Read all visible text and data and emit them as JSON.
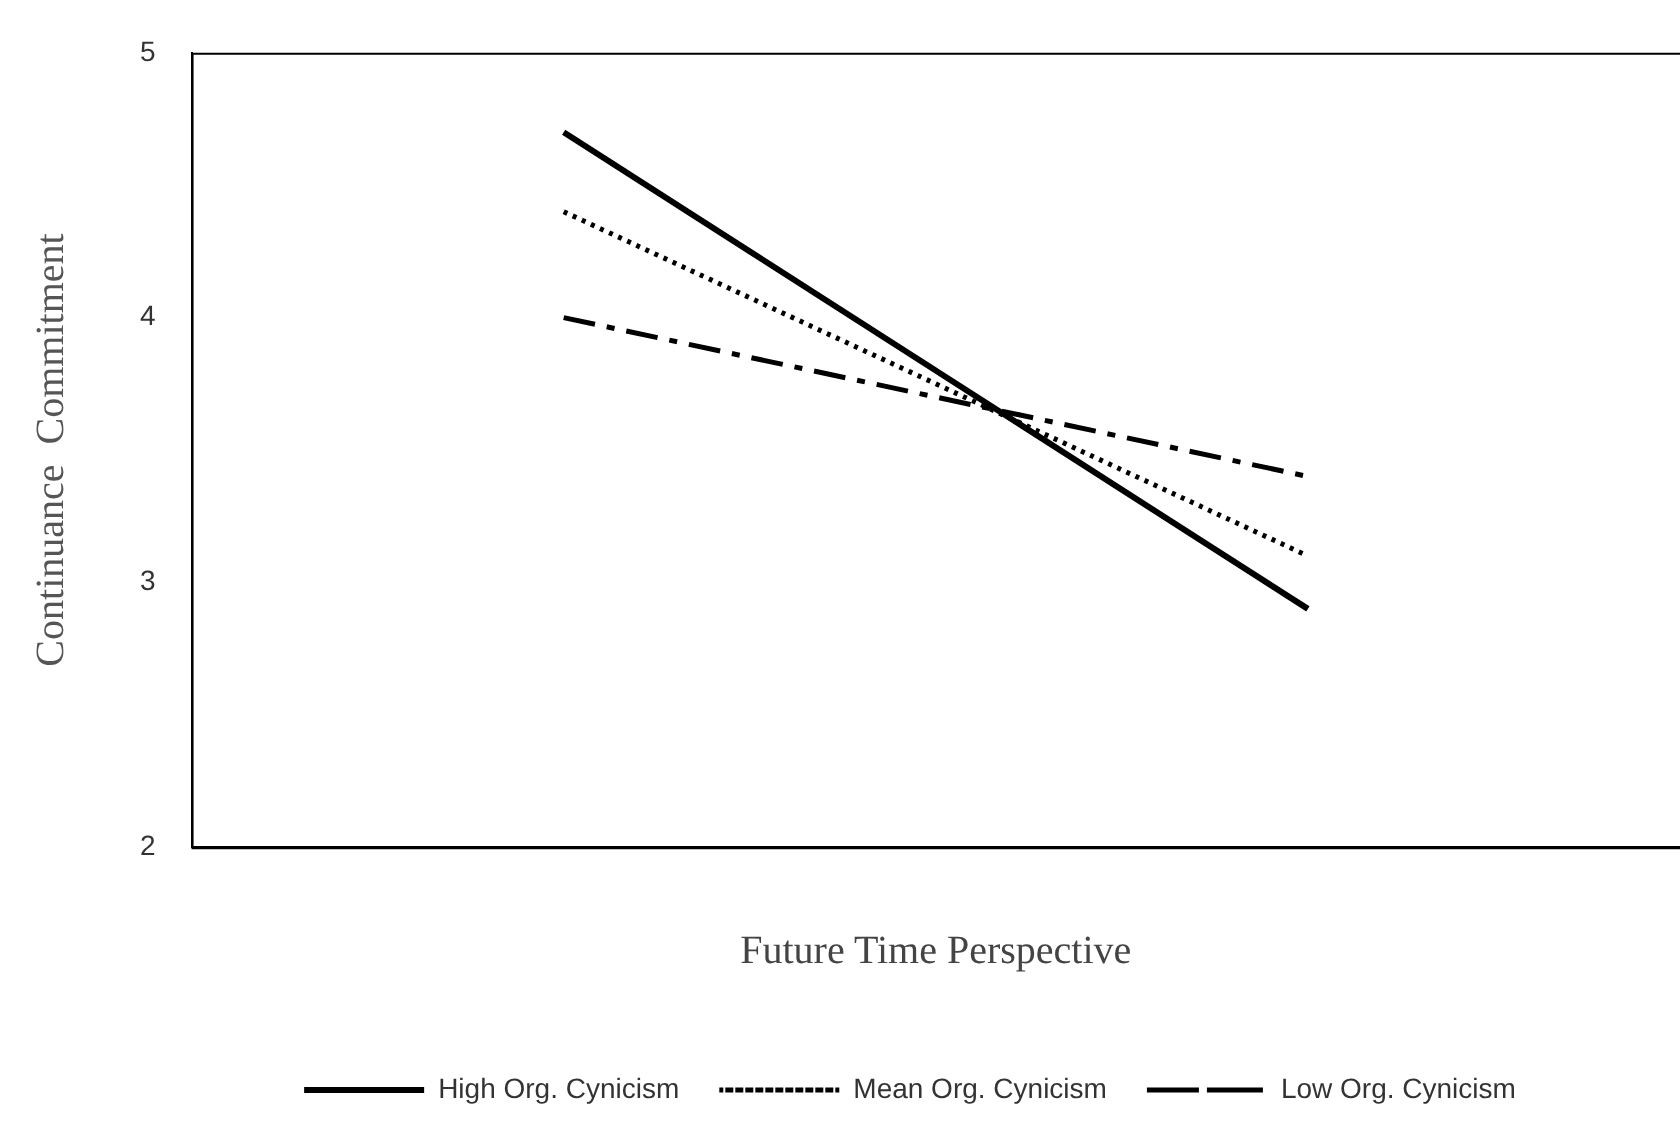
{
  "chart_data": {
    "type": "line",
    "xlabel": "Future Time Perspective",
    "ylabel": "Continuance  Commitment",
    "categories": [
      null,
      null
    ],
    "series": [
      {
        "name": "High Org. Cynicism",
        "color": "#000000",
        "values": [
          4.7,
          2.9
        ],
        "line_style": "solid"
      },
      {
        "name": "Mean Org. Cynicism",
        "color": "#000000",
        "values": [
          4.4,
          3.1
        ],
        "line_style": "dotted"
      },
      {
        "name": "Low Org. Cynicism",
        "color": "#000000",
        "values": [
          4.0,
          3.4
        ],
        "line_style": "dashed"
      }
    ],
    "ylim": [
      2,
      5
    ],
    "yticks": [
      2,
      3,
      4,
      5
    ],
    "grid": false,
    "legend": "bottom",
    "marker": "none"
  }
}
